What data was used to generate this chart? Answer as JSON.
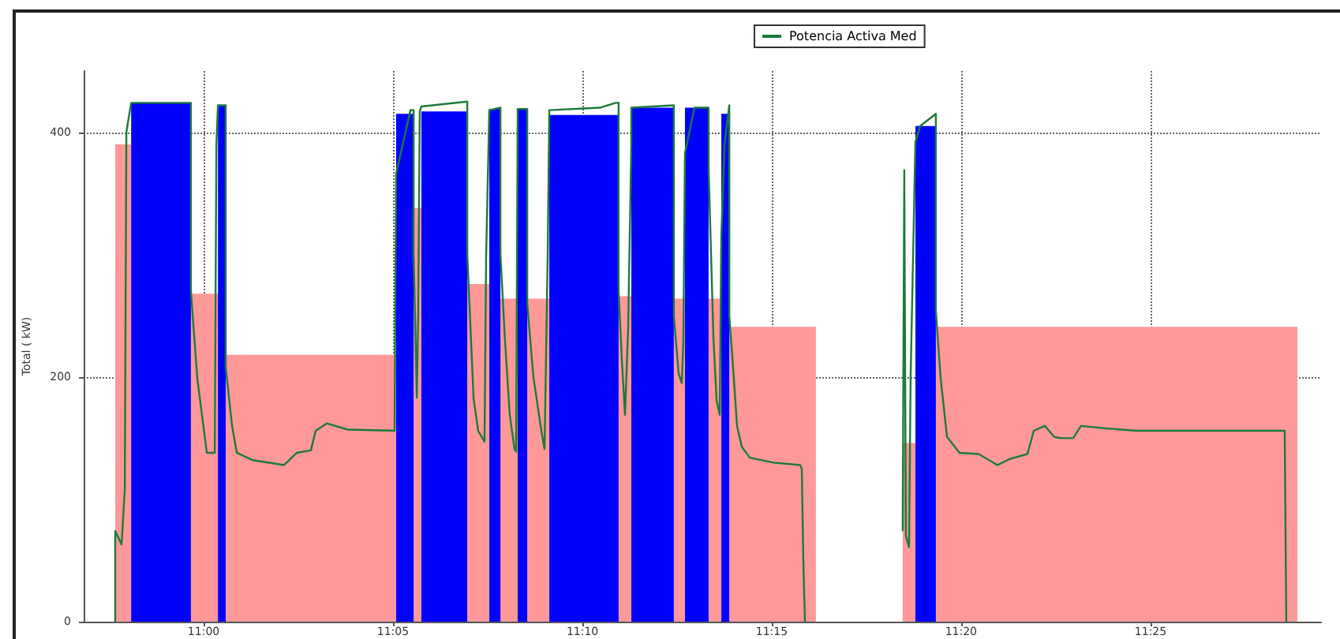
{
  "chart_data": {
    "type": "line",
    "ylabel": "Total ( kW)",
    "xlim": [
      10.9472,
      11.4917
    ],
    "ylim": [
      0,
      450
    ],
    "yticks": [
      0,
      200,
      400
    ],
    "xticks": [
      {
        "value": 11.0,
        "label": "11:00"
      },
      {
        "value": 11.0833,
        "label": "11:05"
      },
      {
        "value": 11.1667,
        "label": "11:10"
      },
      {
        "value": 11.25,
        "label": "11:15"
      },
      {
        "value": 11.3333,
        "label": "11:20"
      },
      {
        "value": 11.4167,
        "label": "11:25"
      }
    ],
    "grid": true,
    "legend": "top",
    "marker": "none",
    "series": [
      {
        "type": "area",
        "color": "#ff9999",
        "x": [
          10.9611,
          10.9611,
          10.9681,
          10.9681,
          10.9938,
          10.9938,
          11.0097,
          11.0097,
          11.0097,
          11.0847,
          11.0847,
          11.0924,
          11.0924,
          11.0958,
          11.0958,
          11.116,
          11.116,
          11.1257,
          11.1257,
          11.1299,
          11.1299,
          11.1382,
          11.1382,
          11.1424,
          11.1424,
          11.1521,
          11.1521,
          11.1826,
          11.1826,
          11.1882,
          11.1882,
          11.2069,
          11.2069,
          11.2118,
          11.2118,
          11.2222,
          11.2222,
          11.2278,
          11.2278,
          11.2313,
          11.2313,
          11.2694,
          11.2694,
          11.3076,
          11.3076,
          11.3132,
          11.3132,
          11.3222,
          11.3222,
          11.4813,
          11.4813
        ],
        "values": [
          0,
          390,
          390,
          0,
          0,
          268,
          268,
          0,
          218,
          218,
          0,
          0,
          338,
          338,
          0,
          0,
          276,
          276,
          0,
          0,
          264,
          264,
          0,
          0,
          264,
          264,
          0,
          0,
          266,
          266,
          0,
          0,
          264,
          264,
          0,
          0,
          264,
          264,
          0,
          0,
          241,
          241,
          0,
          0,
          146,
          146,
          0,
          0,
          241,
          241,
          0
        ]
      },
      {
        "type": "area",
        "color": "#0000ff",
        "x": [
          10.9681,
          10.9681,
          10.9944,
          10.9944,
          11.0063,
          11.0063,
          11.0097,
          11.0097,
          11.0847,
          11.0847,
          11.0924,
          11.0924,
          11.0958,
          11.0958,
          11.116,
          11.116,
          11.1257,
          11.1257,
          11.1306,
          11.1306,
          11.1382,
          11.1382,
          11.1424,
          11.1424,
          11.1521,
          11.1521,
          11.1826,
          11.1826,
          11.1882,
          11.1882,
          11.2069,
          11.2069,
          11.2118,
          11.2118,
          11.2222,
          11.2222,
          11.2278,
          11.2278,
          11.2313,
          11.2313,
          11.3132,
          11.3132,
          11.3222,
          11.3222
        ],
        "values": [
          0,
          424,
          424,
          0,
          0,
          422,
          422,
          0,
          0,
          415,
          415,
          0,
          0,
          417,
          417,
          0,
          0,
          419,
          419,
          0,
          0,
          419,
          419,
          0,
          0,
          414,
          414,
          0,
          0,
          420,
          420,
          0,
          0,
          420,
          420,
          0,
          0,
          415,
          415,
          0,
          0,
          405,
          405,
          0
        ]
      },
      {
        "name": "Potencia Activa Med",
        "color": "#1b7a3c",
        "x": [
          10.9611,
          10.9611,
          10.9639,
          10.9653,
          10.966,
          10.9681,
          10.9944,
          10.9944,
          10.9972,
          11.0014,
          11.0049,
          11.0056,
          11.0063,
          11.0097,
          11.0097,
          11.0125,
          11.0146,
          11.0215,
          11.0354,
          11.041,
          11.0472,
          11.0493,
          11.0542,
          11.0632,
          11.084,
          11.0847,
          11.091,
          11.0924,
          11.0924,
          11.0938,
          11.0944,
          11.0951,
          11.0958,
          11.116,
          11.116,
          11.1188,
          11.1208,
          11.1236,
          11.1243,
          11.1257,
          11.1306,
          11.1306,
          11.1326,
          11.1347,
          11.1368,
          11.1375,
          11.1382,
          11.1424,
          11.1424,
          11.1451,
          11.1486,
          11.15,
          11.1514,
          11.1521,
          11.1743,
          11.1813,
          11.1826,
          11.1826,
          11.184,
          11.1854,
          11.1868,
          11.1882,
          11.1882,
          11.2069,
          11.2069,
          11.209,
          11.2104,
          11.2111,
          11.2118,
          11.216,
          11.2222,
          11.2222,
          11.2243,
          11.2257,
          11.2271,
          11.2278,
          11.2292,
          11.2313,
          11.2313,
          11.2333,
          11.2347,
          11.2368,
          11.2403,
          11.2507,
          11.2625,
          11.2632,
          11.2639,
          11.2646,
          11.29,
          11.3076,
          11.3083,
          11.309,
          11.3104,
          11.3111,
          11.3132,
          11.3153,
          11.3222,
          11.3222,
          11.3243,
          11.3271,
          11.3326,
          11.341,
          11.3493,
          11.3549,
          11.3625,
          11.3653,
          11.3701,
          11.3743,
          11.3771,
          11.3826,
          11.3861,
          11.3965,
          11.4104,
          11.466,
          11.4757,
          11.4764
        ],
        "values": [
          0,
          74,
          63,
          108,
          400,
          424,
          424,
          270,
          199,
          138,
          138,
          390,
          422,
          422,
          208,
          160,
          138,
          132,
          128,
          138,
          140,
          156,
          162,
          157,
          156,
          366,
          418,
          418,
          300,
          183,
          250,
          417,
          421,
          425,
          300,
          182,
          156,
          147,
          298,
          418,
          420,
          300,
          230,
          169,
          141,
          139,
          419,
          419,
          260,
          200,
          156,
          141,
          300,
          418,
          420,
          424,
          424,
          270,
          215,
          169,
          240,
          390,
          420,
          422,
          250,
          203,
          195,
          230,
          383,
          420,
          420,
          371,
          233,
          181,
          169,
          315,
          390,
          422,
          250,
          199,
          160,
          143,
          134,
          130,
          128,
          125,
          48,
          0,
          null,
          74,
          369,
          70,
          61,
          200,
          392,
          405,
          415,
          254,
          199,
          151,
          138,
          137,
          128,
          133,
          137,
          156,
          160,
          151,
          150,
          150,
          160,
          158,
          156,
          156,
          156,
          0
        ]
      }
    ]
  }
}
